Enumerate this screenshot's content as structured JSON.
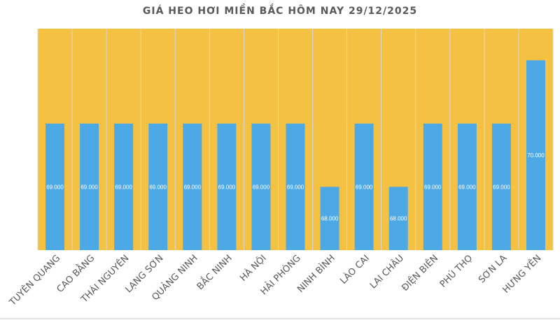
{
  "chart_data": {
    "type": "bar",
    "title": "GIÁ HEO HƠI MIỀN BẮC HÔM NAY 29/12/2025",
    "categories": [
      "TUYÊN QUANG",
      "CAO BẰNG",
      "THÁI NGUYÊN",
      "LẠNG SƠN",
      "QUẢNG NINH",
      "BẮC NINH",
      "HÀ NỘI",
      "HẢI PHÒNG",
      "NINH BÌNH",
      "LÀO CAI",
      "LAI CHÂU",
      "ĐIỆN BIÊN",
      "PHÚ THỌ",
      "SƠN LA",
      "HƯNG YÊN"
    ],
    "values": [
      69000,
      69000,
      69000,
      69000,
      69000,
      69000,
      69000,
      69000,
      68000,
      69000,
      68000,
      69000,
      69000,
      69000,
      70000
    ],
    "data_labels": [
      "69.000",
      "69.000",
      "69.000",
      "69.000",
      "69.000",
      "69.000",
      "69.000",
      "69.000",
      "68.000",
      "69.000",
      "68.000",
      "69.000",
      "69.000",
      "69.000",
      "70.000"
    ],
    "xlabel": "",
    "ylabel": "",
    "ylim": [
      67000,
      70500
    ],
    "grid": "vertical category separators",
    "legend": "none",
    "colors": {
      "bar": "#4DA9E6",
      "plot_background": "#F4C142",
      "grid": "#D9D9D9",
      "text": "#595959",
      "data_label": "#FFFFFF"
    }
  }
}
